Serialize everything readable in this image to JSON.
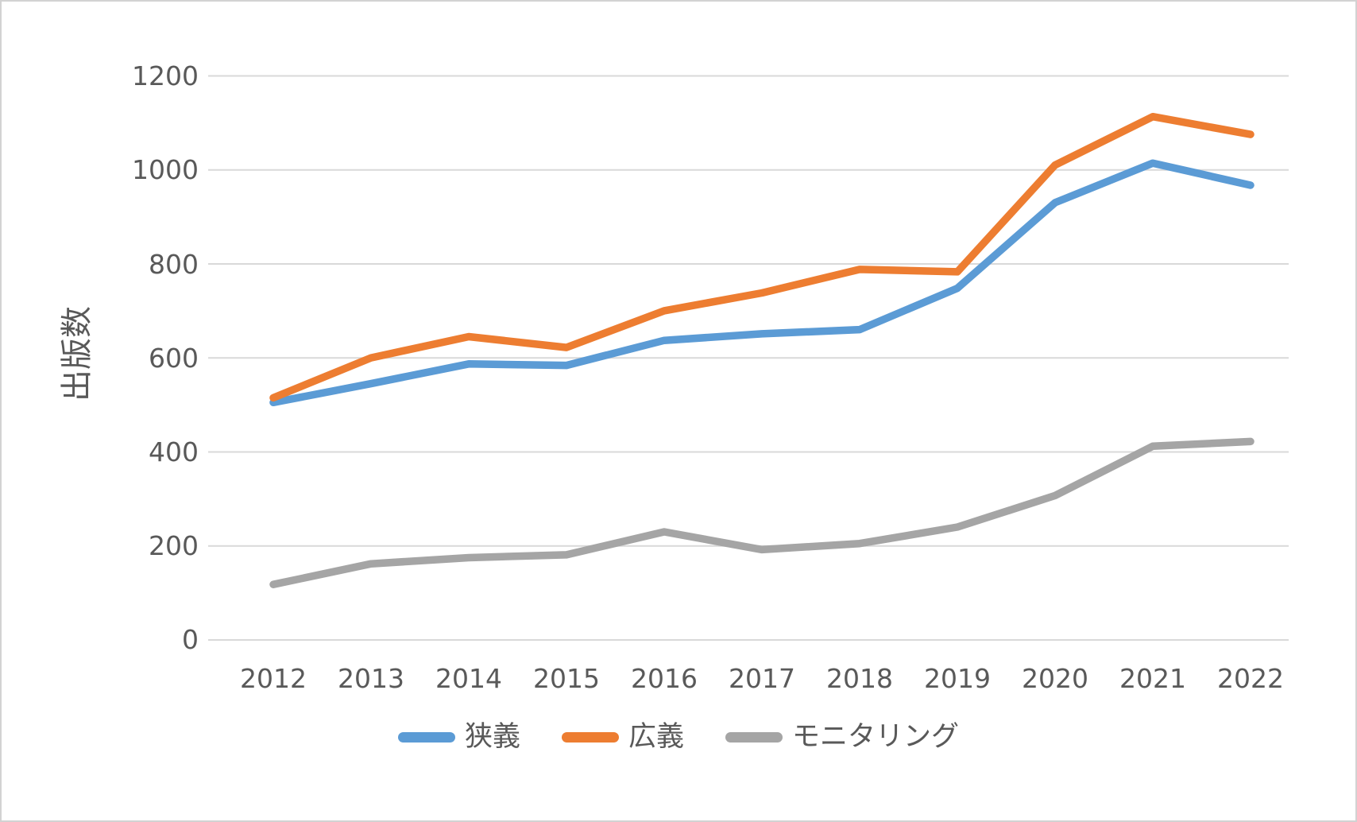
{
  "chart_data": {
    "type": "line",
    "title": "",
    "xlabel": "",
    "ylabel": "出版数",
    "ylim": [
      0,
      1200
    ],
    "y_tick_step": 200,
    "grid": "horizontal",
    "legend_position": "bottom",
    "y_tick_labels": [
      "1200",
      "1000",
      "800",
      "600",
      "400",
      "200",
      "0"
    ],
    "categories": [
      "2012",
      "2013",
      "2014",
      "2015",
      "2016",
      "2017",
      "2018",
      "2019",
      "2020",
      "2021",
      "2022"
    ],
    "series": [
      {
        "name": "狭義",
        "color": "#5B9BD5",
        "values": [
          505,
          545,
          587,
          584,
          637,
          651,
          660,
          748,
          930,
          1014,
          967
        ]
      },
      {
        "name": "広義",
        "color": "#ED7D31",
        "values": [
          515,
          600,
          645,
          622,
          700,
          738,
          788,
          783,
          1010,
          1113,
          1075
        ]
      },
      {
        "name": "モニタリング",
        "color": "#A5A5A5",
        "values": [
          118,
          162,
          175,
          181,
          230,
          192,
          205,
          240,
          307,
          412,
          422
        ]
      }
    ]
  },
  "colors": {
    "text": "#595959",
    "gridline": "#D9D9D9",
    "canvas_border": "#D2D2D2",
    "background": "#FFFFFF"
  }
}
